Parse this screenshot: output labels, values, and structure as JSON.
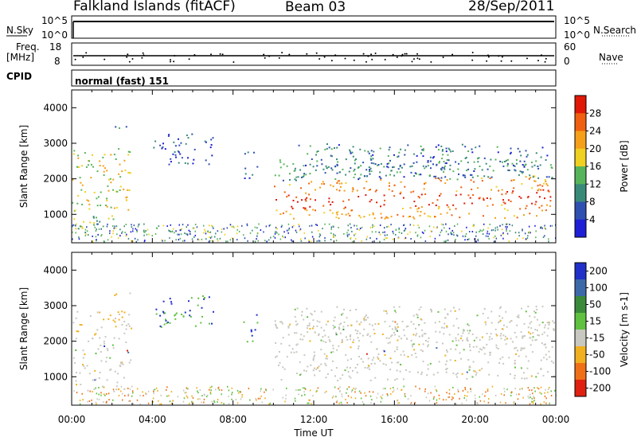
{
  "header": {
    "station": "Falkland Islands (fitACF)",
    "beam": "Beam 03",
    "date": "28/Sep/2011"
  },
  "status_panels": {
    "nsky_label": "N.Sky",
    "nsearch_label": "N.Search",
    "nsky_ticks": [
      "10^5",
      "10^0"
    ],
    "nsearch_ticks": [
      "10^5",
      "10^0"
    ],
    "freq_label": "Freq.",
    "freq_unit": "[MHz]",
    "freq_ticks": [
      "18",
      "8"
    ],
    "nave_label": "Nave",
    "nave_ticks": [
      "60",
      "0"
    ],
    "cpid_label": "CPID",
    "cpid_value": "normal (fast) 151"
  },
  "chart_data": [
    {
      "type": "heatmap",
      "quantity": "Power",
      "ylabel": "Slant Range [km]",
      "ylim": [
        200,
        4500
      ],
      "yticks": [
        1000,
        2000,
        3000,
        4000
      ],
      "xlim": [
        0,
        24
      ],
      "colorbar_label": "Power [dB]",
      "colorbar_ticks": [
        4,
        8,
        12,
        16,
        20,
        24,
        28
      ],
      "colorbar_range": [
        0,
        32
      ],
      "colors": [
        "#1f1fd6",
        "#2f50b0",
        "#3a8a7a",
        "#58b45a",
        "#f0d020",
        "#f5a018",
        "#f06010",
        "#e01808"
      ],
      "regions": [
        {
          "t": [
            0.0,
            3.0
          ],
          "r": [
            1100,
            2900
          ],
          "level": 18
        },
        {
          "t": [
            0.0,
            2.6
          ],
          "r": [
            600,
            1000
          ],
          "level": 14
        },
        {
          "t": [
            2.0,
            3.0
          ],
          "r": [
            3300,
            3500
          ],
          "level": 10
        },
        {
          "t": [
            4.0,
            7.0
          ],
          "r": [
            2400,
            3300
          ],
          "level": 6
        },
        {
          "t": [
            8.5,
            9.2
          ],
          "r": [
            2000,
            2800
          ],
          "level": 5
        },
        {
          "t": [
            10.0,
            23.9
          ],
          "r": [
            900,
            2600
          ],
          "level": 22
        },
        {
          "t": [
            11.0,
            23.9
          ],
          "r": [
            2000,
            3000
          ],
          "level": 8
        }
      ]
    },
    {
      "type": "heatmap",
      "quantity": "Velocity",
      "ylabel": "Slant Range [km]",
      "ylim": [
        200,
        4500
      ],
      "yticks": [
        1000,
        2000,
        3000,
        4000
      ],
      "xlim": [
        0,
        24
      ],
      "xlabel": "Time UT",
      "xticks": [
        "00:00",
        "04:00",
        "08:00",
        "12:00",
        "16:00",
        "20:00",
        "00:00"
      ],
      "colorbar_label": "Velocity [m s-1]",
      "colorbar_ticks": [
        200,
        100,
        50,
        15,
        -15,
        -50,
        -100,
        -200
      ],
      "colors": [
        "#2030c8",
        "#3c6aa8",
        "#3a8a3a",
        "#60c040",
        "#c8c8c0",
        "#f0b020",
        "#f07018",
        "#e02010"
      ]
    }
  ]
}
